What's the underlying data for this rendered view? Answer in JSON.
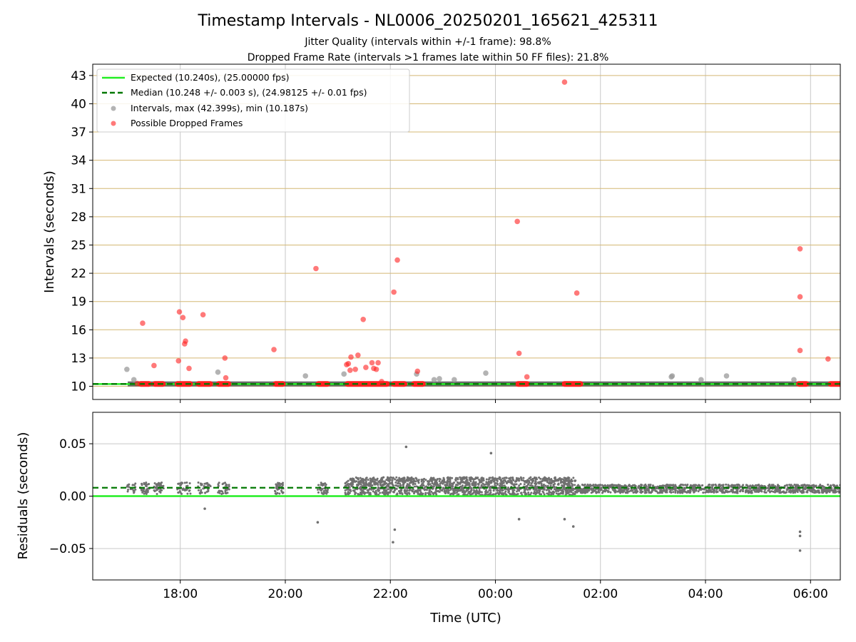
{
  "title": "Timestamp Intervals - NL0006_20250201_165621_425311",
  "subtitle_1": "Jitter Quality (intervals within +/-1 frame): 98.8%",
  "subtitle_2": "Dropped Frame Rate (intervals >1 frames late within 50 FF files): 21.8%",
  "colors": {
    "expected": "#22ee22",
    "median": "#007700",
    "intervals": "#999999",
    "dropped": "#ff2020",
    "residuals": "#707070",
    "top_grid": "#d4b874",
    "grid": "#c8c8c8",
    "band": "#505050"
  },
  "chart_data": [
    {
      "type": "scatter",
      "panel": "intervals",
      "ylabel": "Intervals (seconds)",
      "xlabel": "",
      "x_unit": "hours since 16:00 UTC on axis",
      "xlim": [
        "16:20",
        "06:34"
      ],
      "ylim": [
        8.6,
        44.2
      ],
      "yticks": [
        10,
        13,
        16,
        19,
        22,
        25,
        28,
        31,
        34,
        37,
        40,
        43
      ],
      "ytick_labels": [
        "10",
        "13",
        "16",
        "19",
        "22",
        "25",
        "28",
        "31",
        "34",
        "37",
        "40",
        "43"
      ],
      "grid": "horizontal tan lines at y ticks, vertical grey lines at x ticks",
      "legend_position": "top-left",
      "legend": [
        "Expected (10.240s), (25.00000 fps)",
        "Median (10.248 +/- 0.003 s), (24.98125 +/- 0.01 fps)",
        "Intervals, max (42.399s), min (10.187s)",
        "Possible Dropped Frames"
      ],
      "expected_value": 10.24,
      "median_value": 10.248,
      "data_band": {
        "name": "Intervals (dense)",
        "y": 10.25,
        "x_start": "17:00",
        "x_end": "06:34"
      },
      "dropped_runs": [
        [
          "17:14",
          "17:25"
        ],
        [
          "17:30",
          "17:41"
        ],
        [
          "17:56",
          "18:12"
        ],
        [
          "18:20",
          "18:35"
        ],
        [
          "18:43",
          "18:56"
        ],
        [
          "19:48",
          "19:58"
        ],
        [
          "20:37",
          "20:49"
        ],
        [
          "21:10",
          "21:57"
        ],
        [
          "22:03",
          "22:17"
        ],
        [
          "22:26",
          "22:38"
        ],
        [
          "00:25",
          "00:37"
        ],
        [
          "01:18",
          "01:38"
        ],
        [
          "05:46",
          "05:56"
        ],
        [
          "06:22",
          "06:34"
        ]
      ],
      "intervals": [
        [
          "16:59",
          11.8
        ],
        [
          "17:07",
          10.7
        ],
        [
          "18:43",
          11.5
        ],
        [
          "20:23",
          11.1
        ],
        [
          "21:07",
          11.3
        ],
        [
          "22:30",
          11.3
        ],
        [
          "22:50",
          10.7
        ],
        [
          "22:56",
          10.8
        ],
        [
          "23:13",
          10.7
        ],
        [
          "23:49",
          11.4
        ],
        [
          "03:21",
          11.0
        ],
        [
          "03:22",
          11.1
        ],
        [
          "03:55",
          10.7
        ],
        [
          "04:24",
          11.1
        ],
        [
          "05:41",
          10.7
        ]
      ],
      "dropped": [
        [
          "17:11",
          10.3
        ],
        [
          "17:17",
          16.7
        ],
        [
          "17:30",
          12.2
        ],
        [
          "17:58",
          12.7
        ],
        [
          "17:59",
          17.9
        ],
        [
          "18:03",
          17.3
        ],
        [
          "18:05",
          14.5
        ],
        [
          "18:06",
          14.8
        ],
        [
          "18:10",
          11.9
        ],
        [
          "18:26",
          17.6
        ],
        [
          "18:51",
          13.0
        ],
        [
          "18:52",
          10.9
        ],
        [
          "19:47",
          13.9
        ],
        [
          "20:35",
          22.5
        ],
        [
          "21:10",
          12.3
        ],
        [
          "21:12",
          12.4
        ],
        [
          "21:14",
          11.7
        ],
        [
          "21:15",
          13.1
        ],
        [
          "21:20",
          11.8
        ],
        [
          "21:23",
          13.3
        ],
        [
          "21:29",
          17.1
        ],
        [
          "21:32",
          12.0
        ],
        [
          "21:39",
          12.5
        ],
        [
          "21:41",
          11.9
        ],
        [
          "21:44",
          11.8
        ],
        [
          "21:46",
          12.5
        ],
        [
          "21:50",
          10.5
        ],
        [
          "22:04",
          20.0
        ],
        [
          "22:08",
          23.4
        ],
        [
          "22:31",
          11.6
        ],
        [
          "00:25",
          27.5
        ],
        [
          "00:27",
          13.5
        ],
        [
          "00:36",
          11.0
        ],
        [
          "01:19",
          42.3
        ],
        [
          "01:33",
          19.9
        ],
        [
          "05:48",
          24.6
        ],
        [
          "05:48",
          19.5
        ],
        [
          "05:48",
          13.8
        ],
        [
          "06:20",
          12.9
        ]
      ]
    },
    {
      "type": "scatter",
      "panel": "residuals",
      "ylabel": "Residuals (seconds)",
      "xlabel": "Time (UTC)",
      "xlim": [
        "16:20",
        "06:34"
      ],
      "ylim": [
        -0.08,
        0.08
      ],
      "yticks": [
        -0.05,
        0.0,
        0.05
      ],
      "ytick_labels": [
        "−0.05",
        "0.00",
        "0.05"
      ],
      "xticks": [
        "18:00",
        "20:00",
        "22:00",
        "00:00",
        "02:00",
        "04:00",
        "06:00"
      ],
      "expected_residual": 0.0,
      "median_residual": 0.008,
      "outliers": [
        [
          "18:28",
          -0.012
        ],
        [
          "20:37",
          -0.025
        ],
        [
          "22:03",
          -0.044
        ],
        [
          "22:05",
          -0.032
        ],
        [
          "22:18",
          0.047
        ],
        [
          "23:55",
          0.041
        ],
        [
          "00:27",
          -0.022
        ],
        [
          "01:19",
          -0.022
        ],
        [
          "01:29",
          -0.029
        ],
        [
          "05:48",
          -0.034
        ],
        [
          "05:48",
          -0.038
        ],
        [
          "05:48",
          -0.052
        ]
      ]
    }
  ],
  "axes": {
    "x_tick_labels": [
      "18:00",
      "20:00",
      "22:00",
      "00:00",
      "02:00",
      "04:00",
      "06:00"
    ],
    "x_label": "Time (UTC)",
    "top_y_label": "Intervals (seconds)",
    "bottom_y_label": "Residuals (seconds)"
  }
}
